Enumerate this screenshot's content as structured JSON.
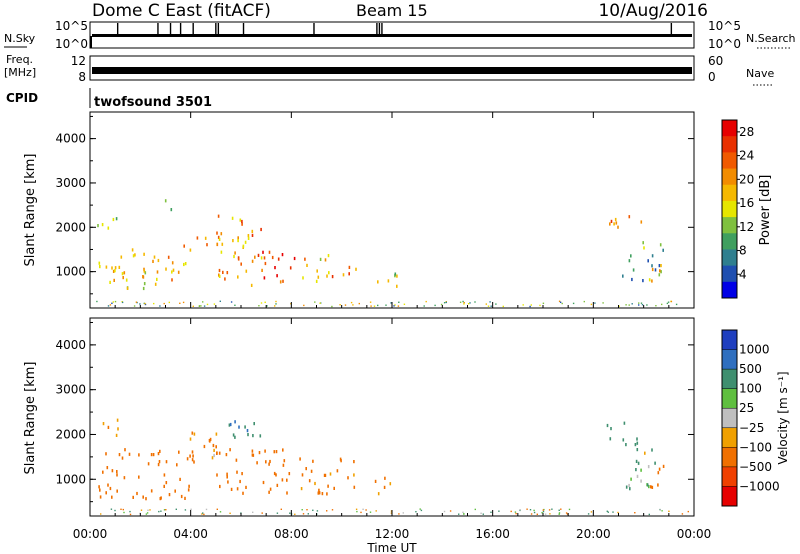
{
  "header": {
    "station": "Dome C East (fitACF)",
    "beam": "Beam 15",
    "date": "10/Aug/2016"
  },
  "panels": {
    "nsky_label": "N.Sky",
    "nsky_ticks": [
      "10^5",
      "10^0"
    ],
    "nsearch_label": "N.Search",
    "nsearch_ticks": [
      "10^5",
      "10^0"
    ],
    "freq_label_1": "Freq.",
    "freq_label_2": "[MHz]",
    "freq_ticks": [
      "12",
      "8"
    ],
    "nave_label": "Nave",
    "nave_ticks": [
      "60",
      "0"
    ],
    "cpid_label": "CPID",
    "cpid_value": "twofsound 3501"
  },
  "colors": {
    "power": [
      "#0000e6",
      "#1f4fb0",
      "#2f7f8f",
      "#3f9f5f",
      "#7fc03f",
      "#e6e600",
      "#f5b800",
      "#f28c00",
      "#f05a00",
      "#e83000",
      "#e60000"
    ],
    "velocity": [
      "#1f3fbf",
      "#2f6fbf",
      "#3f8f6f",
      "#5fbf3f",
      "#bfbfbf",
      "#f0a000",
      "#f07000",
      "#f04000",
      "#e60000"
    ]
  },
  "chart_data": [
    {
      "type": "heatmap",
      "name": "power",
      "xlabel": "",
      "ylabel": "Slant Range [km]",
      "x_range_hours": [
        0,
        24
      ],
      "ylim": [
        180,
        4600
      ],
      "y_ticks": [
        "1000",
        "2000",
        "3000",
        "4000"
      ],
      "colorbar_label": "Power [dB]",
      "colorbar_ticks": [
        "4",
        "8",
        "12",
        "16",
        "20",
        "24",
        "28"
      ],
      "colorbar_range": [
        0,
        30
      ],
      "patches": [
        {
          "t0": 0.3,
          "t1": 3.0,
          "r0": 650,
          "r1": 1550,
          "v": 16
        },
        {
          "t0": 3.0,
          "t1": 4.0,
          "r0": 650,
          "r1": 1450,
          "v": 18
        },
        {
          "t0": 3.5,
          "t1": 5.2,
          "r0": 1500,
          "r1": 2000,
          "v": 20
        },
        {
          "t0": 0.2,
          "t1": 1.2,
          "r0": 2000,
          "r1": 2300,
          "v": 12
        },
        {
          "t0": 2.8,
          "t1": 3.5,
          "r0": 2400,
          "r1": 2700,
          "v": 10
        },
        {
          "t0": 5.0,
          "t1": 6.8,
          "r0": 700,
          "r1": 2300,
          "v": 20
        },
        {
          "t0": 6.8,
          "t1": 8.2,
          "r0": 800,
          "r1": 1500,
          "v": 26
        },
        {
          "t0": 8.2,
          "t1": 9.6,
          "r0": 800,
          "r1": 1400,
          "v": 18
        },
        {
          "t0": 9.6,
          "t1": 10.6,
          "r0": 800,
          "r1": 1200,
          "v": 22
        },
        {
          "t0": 11.2,
          "t1": 12.2,
          "r0": 650,
          "r1": 1100,
          "v": 14
        },
        {
          "t0": 20.5,
          "t1": 21.9,
          "r0": 1900,
          "r1": 2300,
          "v": 22
        },
        {
          "t0": 21.0,
          "t1": 22.8,
          "r0": 800,
          "r1": 1800,
          "v": 8
        },
        {
          "t0": 22.2,
          "t1": 22.9,
          "r0": 800,
          "r1": 1300,
          "v": 18
        }
      ]
    },
    {
      "type": "heatmap",
      "name": "velocity",
      "xlabel": "Time UT",
      "ylabel": "Slant Range [km]",
      "x_ticks": [
        "00:00",
        "04:00",
        "08:00",
        "12:00",
        "16:00",
        "20:00",
        "00:00"
      ],
      "x_range_hours": [
        0,
        24
      ],
      "ylim": [
        180,
        4600
      ],
      "y_ticks": [
        "1000",
        "2000",
        "3000",
        "4000"
      ],
      "colorbar_label": "Velocity [m s⁻¹]",
      "colorbar_ticks": [
        "1000",
        "500",
        "100",
        "25",
        "−25",
        "−100",
        "−500",
        "−1000"
      ],
      "patches": [
        {
          "t0": 0.3,
          "t1": 4.2,
          "r0": 600,
          "r1": 1700,
          "v": -300
        },
        {
          "t0": 0.4,
          "t1": 1.2,
          "r0": 2000,
          "r1": 2400,
          "v": -100
        },
        {
          "t0": 3.5,
          "t1": 5.3,
          "r0": 1500,
          "r1": 2100,
          "v": -150
        },
        {
          "t0": 5.3,
          "t1": 6.8,
          "r0": 1800,
          "r1": 2400,
          "v": 500
        },
        {
          "t0": 5.0,
          "t1": 8.2,
          "r0": 700,
          "r1": 1700,
          "v": -300
        },
        {
          "t0": 8.2,
          "t1": 10.6,
          "r0": 700,
          "r1": 1500,
          "v": -200
        },
        {
          "t0": 11.2,
          "t1": 12.2,
          "r0": 650,
          "r1": 1100,
          "v": -200
        },
        {
          "t0": 20.5,
          "t1": 21.9,
          "r0": 1800,
          "r1": 2300,
          "v": 200
        },
        {
          "t0": 21.0,
          "t1": 22.6,
          "r0": 800,
          "r1": 1700,
          "v": 100
        },
        {
          "t0": 22.1,
          "t1": 22.9,
          "r0": 800,
          "r1": 1400,
          "v": -300
        }
      ]
    }
  ]
}
